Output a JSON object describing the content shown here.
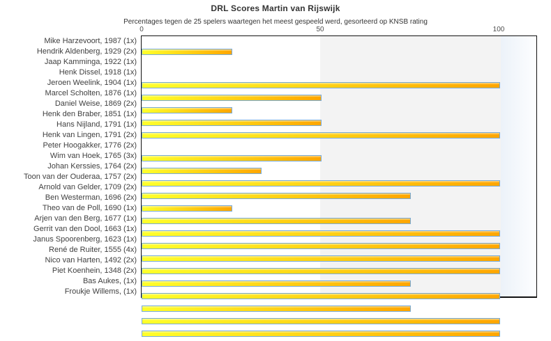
{
  "title": "DRL Scores Martin van Rijswijk",
  "subtitle": "Percentages tegen de 25 spelers waartegen het meest gespeeld werd, gesorteerd op KNSB rating",
  "axis": {
    "tick_0": "0",
    "tick_50": "50",
    "tick_100": "100"
  },
  "chart_data": {
    "type": "bar",
    "orientation": "horizontal",
    "title": "DRL Scores Martin van Rijswijk",
    "subtitle": "Percentages tegen de 25 spelers waartegen het meest gespeeld werd, gesorteerd op KNSB rating",
    "xlabel": "",
    "ylabel": "",
    "xlim": [
      0,
      110.5
    ],
    "x_ticks": [
      0,
      50,
      100
    ],
    "grid": false,
    "legend": "none",
    "categories": [
      "Mike Harzevoort, 1987 (1x)",
      "Hendrik Aldenberg, 1929 (2x)",
      "Jaap Kamminga, 1922 (1x)",
      "Henk Dissel, 1918 (1x)",
      "Jeroen Weelink, 1904 (1x)",
      "Marcel Scholten, 1876 (1x)",
      "Daniel Weise, 1869 (2x)",
      "Henk den Braber, 1851 (1x)",
      "Hans Nijland, 1791 (1x)",
      "Henk van Lingen, 1791 (2x)",
      "Peter Hoogakker, 1776 (2x)",
      "Wim van Hoek, 1765 (3x)",
      "Johan Kerssies, 1764 (2x)",
      "Toon van der Ouderaa, 1757 (2x)",
      "Arnold van Gelder, 1709 (2x)",
      "Ben Westerman, 1696 (2x)",
      "Theo van de Poll, 1690 (1x)",
      "Arjen van den Berg, 1677 (1x)",
      "Gerrit van den Dool, 1663 (1x)",
      "Janus Spoorenberg, 1623 (1x)",
      "René de Ruiter, 1555 (4x)",
      "Nico van Harten, 1492 (2x)",
      "Piet Koenhein, 1348 (2x)",
      "Bas Aukes,  (1x)",
      "Froukje Willems,  (1x)"
    ],
    "values": [
      0,
      25,
      0,
      0,
      100,
      50,
      25,
      50,
      100,
      0,
      50,
      33.3,
      100,
      75,
      25,
      75,
      100,
      100,
      100,
      100,
      75,
      100,
      75,
      100,
      100
    ],
    "bands": [
      {
        "range": [
          0,
          50
        ],
        "color": "#ffffff"
      },
      {
        "range": [
          50,
          100
        ],
        "color": "#f3f3f3"
      },
      {
        "range": [
          100,
          110.5
        ],
        "color": "#ecf2f9"
      }
    ],
    "colors": {
      "bar_gradient_start": "#ffff2b",
      "bar_gradient_end": "#ffa600",
      "bar_border": "#76aad9",
      "plot_border": "#111111",
      "title_text": "#333333",
      "label_text": "#404040"
    }
  }
}
